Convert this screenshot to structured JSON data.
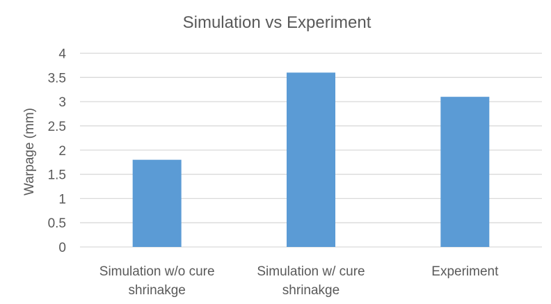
{
  "chart_data": {
    "type": "bar",
    "title": "Simulation vs Experiment",
    "xlabel": "",
    "ylabel": "Warpage (mm)",
    "categories": [
      [
        "Simulation w/o cure",
        "shrinakge"
      ],
      [
        "Simulation w/ cure",
        "shrinakge"
      ],
      [
        "Experiment"
      ]
    ],
    "values": [
      1.8,
      3.6,
      3.1
    ],
    "ylim": [
      0,
      4
    ],
    "yticks": [
      "0",
      "0.5",
      "1",
      "1.5",
      "2",
      "2.5",
      "3",
      "3.5",
      "4"
    ],
    "grid": true,
    "legend": "none",
    "bar_color": "#5b9bd5",
    "grid_color": "#d9d9d9"
  }
}
